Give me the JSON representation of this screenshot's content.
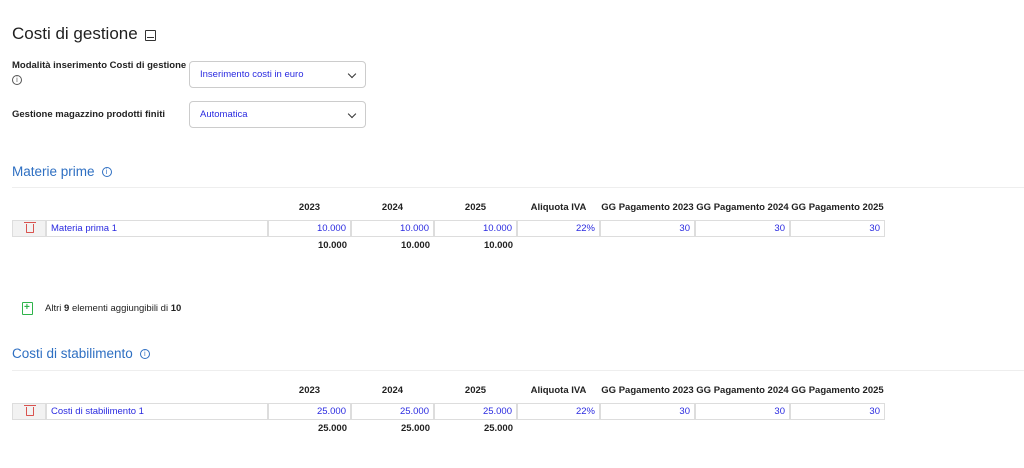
{
  "page": {
    "title": "Costi di gestione",
    "title_icon": "book-icon"
  },
  "fields": {
    "mode": {
      "label": "Modalità inserimento Costi di gestione",
      "value": "Inserimento costi in euro"
    },
    "warehouse": {
      "label": "Gestione magazzino prodotti finiti",
      "value": "Automatica"
    }
  },
  "info_glyph": "i",
  "columns": [
    "2023",
    "2024",
    "2025",
    "Aliquota IVA",
    "GG Pagamento 2023",
    "GG Pagamento 2024",
    "GG Pagamento 2025"
  ],
  "materie_prime": {
    "title": "Materie prime",
    "rows": [
      {
        "name": "Materia prima 1",
        "v2023": "10.000",
        "v2024": "10.000",
        "v2025": "10.000",
        "iva": "22%",
        "gg2023": "30",
        "gg2024": "30",
        "gg2025": "30"
      }
    ],
    "totals": {
      "t2023": "10.000",
      "t2024": "10.000",
      "t2025": "10.000"
    }
  },
  "add_more": {
    "prefix": "Altri",
    "count": "9",
    "middle": "elementi aggiungibili di",
    "max": "10"
  },
  "costi_stabilimento": {
    "title": "Costi di stabilimento",
    "rows": [
      {
        "name": "Costi di stabilimento 1",
        "v2023": "25.000",
        "v2024": "25.000",
        "v2025": "25.000",
        "iva": "22%",
        "gg2023": "30",
        "gg2024": "30",
        "gg2025": "30"
      }
    ],
    "totals": {
      "t2023": "25.000",
      "t2024": "25.000",
      "t2025": "25.000"
    }
  },
  "colors": {
    "accent": "#2e6fc2",
    "value_text": "#2a2ae0",
    "delete": "#d9534f",
    "add": "#2eb34a"
  }
}
